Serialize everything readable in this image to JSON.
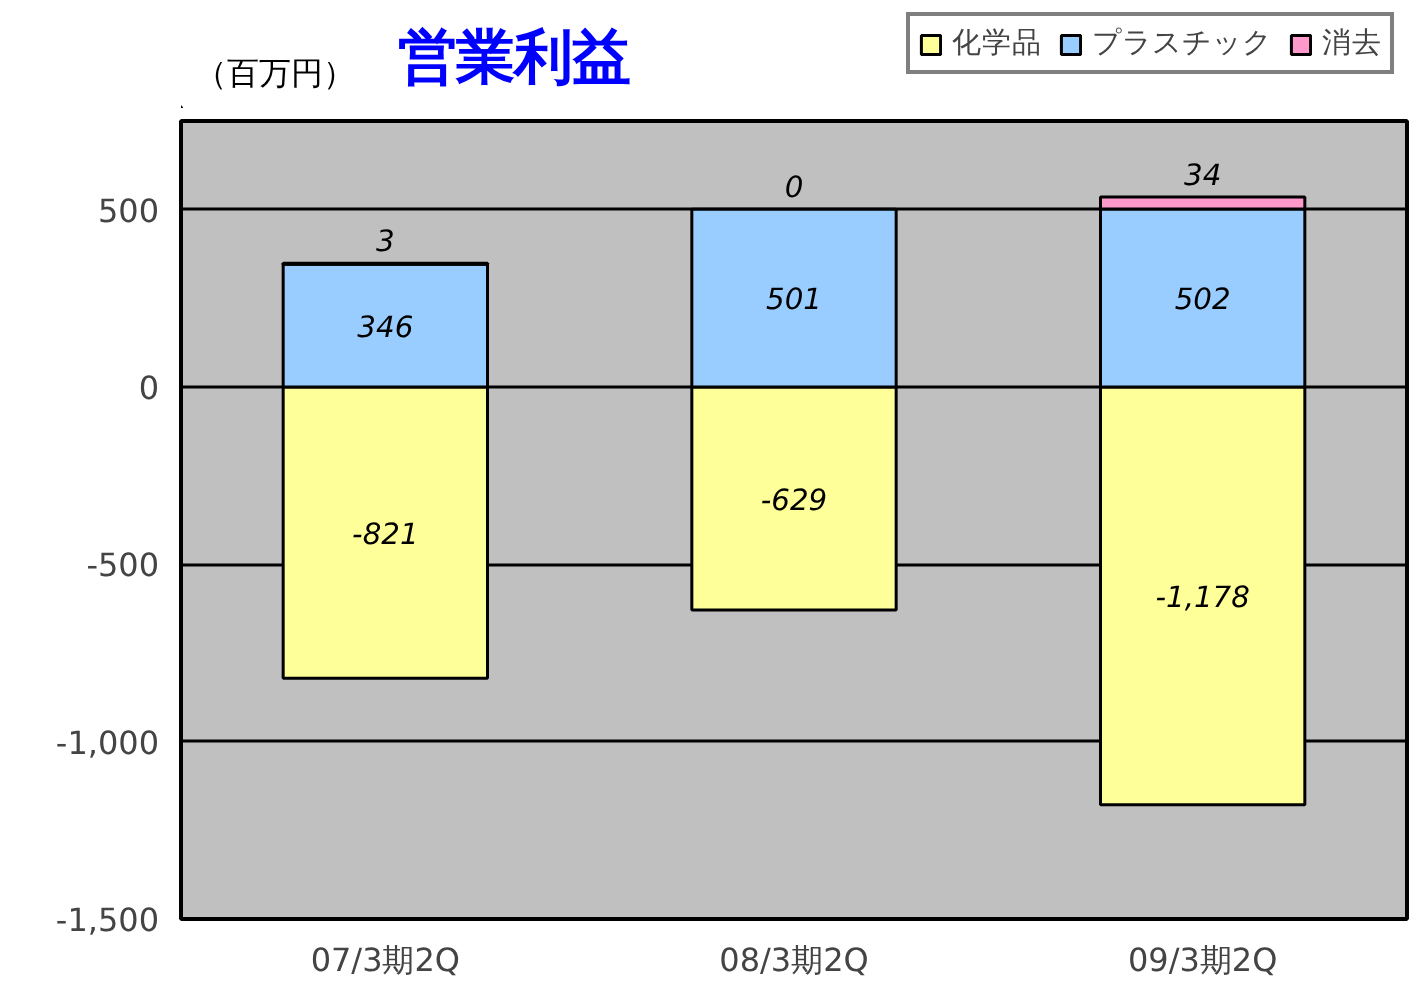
{
  "chart_data": {
    "type": "bar",
    "title": "営業利益",
    "annotations": [
      "（百万円）"
    ],
    "categories": [
      "07/3期2Q",
      "08/3期2Q",
      "09/3期2Q"
    ],
    "series": [
      {
        "name": "化学品",
        "color": "#ffff99",
        "values": [
          -821,
          -629,
          -1178
        ],
        "value_labels": [
          "-821",
          "-629",
          "-1,178"
        ]
      },
      {
        "name": "プラスチック",
        "color": "#99ccff",
        "values": [
          346,
          501,
          502
        ],
        "value_labels": [
          "346",
          "501",
          "502"
        ]
      },
      {
        "name": "消去",
        "color": "#ff99cc",
        "values": [
          3,
          0,
          34
        ],
        "value_labels": [
          "3",
          "0",
          "34"
        ]
      }
    ],
    "stacked": true,
    "ylim": [
      -1500,
      750
    ],
    "yticks": [
      {
        "value": -1500,
        "label": "-1,500"
      },
      {
        "value": -1000,
        "label": "-1,000"
      },
      -500,
      0,
      500
    ],
    "grid": "y",
    "legend": "top right"
  }
}
